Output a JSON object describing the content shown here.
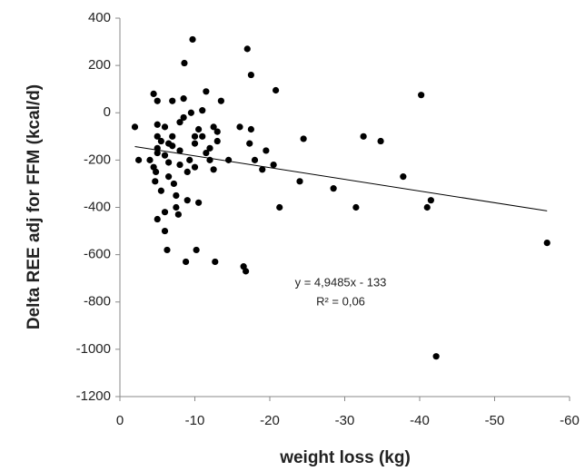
{
  "chart_data": {
    "type": "scatter",
    "x_label": "weight loss (kg)",
    "y_label": "Delta REE adj for FFM (kcal/d)",
    "xlim": [
      0,
      -60
    ],
    "xticks": [
      0,
      -10,
      -20,
      -30,
      -40,
      -50,
      -60
    ],
    "ylim": [
      -1200,
      400
    ],
    "yticks": [
      -1200,
      -1000,
      -800,
      -600,
      -400,
      -200,
      0,
      200,
      400
    ],
    "color": "#000000",
    "x": [
      -2,
      -2.5,
      -4,
      -4.5,
      -4.5,
      -5,
      -5,
      -5,
      -5.5,
      -5,
      -5,
      -4.8,
      -4.7,
      -5,
      -5.5,
      -6,
      -6,
      -6.3,
      -6,
      -6.5,
      -6,
      -6.5,
      -6.5,
      -7,
      -7,
      -7,
      -7.2,
      -7.5,
      -7.5,
      -7.8,
      -8,
      -8,
      -8,
      -8.5,
      -8.5,
      -8.6,
      -8.8,
      -9,
      -9,
      -9.3,
      -9.5,
      -9.7,
      -10,
      -10,
      -10,
      -10.2,
      -10.5,
      -10.5,
      -11,
      -11,
      -11.5,
      -11.5,
      -12,
      -12,
      -12.5,
      -12.5,
      -12.7,
      -13,
      -13,
      -13.5,
      -14.5,
      -16,
      -16.5,
      -16.8,
      -17,
      -17.3,
      -17.5,
      -17.5,
      -18,
      -19,
      -19.5,
      -20.5,
      -20.8,
      -21.3,
      -24,
      -24.5,
      -28.5,
      -31.5,
      -32.5,
      -34.8,
      -37.8,
      -40.2,
      -41,
      -41.5,
      -42.2,
      -57
    ],
    "values": [
      -60,
      -200,
      -200,
      -230,
      80,
      50,
      -50,
      -100,
      -120,
      -150,
      -170,
      -250,
      -290,
      -450,
      -330,
      -420,
      -500,
      -580,
      -60,
      -130,
      -180,
      -210,
      -270,
      50,
      -100,
      -140,
      -300,
      -350,
      -400,
      -430,
      -160,
      -220,
      -40,
      -20,
      60,
      210,
      -630,
      -370,
      -250,
      -200,
      0,
      310,
      -100,
      -130,
      -230,
      -580,
      -380,
      -70,
      10,
      -100,
      90,
      -170,
      -150,
      -200,
      -60,
      -240,
      -630,
      -80,
      -120,
      50,
      -200,
      -60,
      -650,
      -670,
      270,
      -130,
      160,
      -70,
      -200,
      -240,
      -160,
      -220,
      95,
      -400,
      -290,
      -110,
      -320,
      -400,
      -100,
      -120,
      -270,
      75,
      -400,
      -370,
      -1030,
      -550
    ],
    "trendline": {
      "slope": 4.9485,
      "intercept": -133,
      "x": [
        -2,
        -57
      ]
    },
    "annotations": [
      "y = 4,9485x - 133",
      "R² = 0,06"
    ]
  }
}
